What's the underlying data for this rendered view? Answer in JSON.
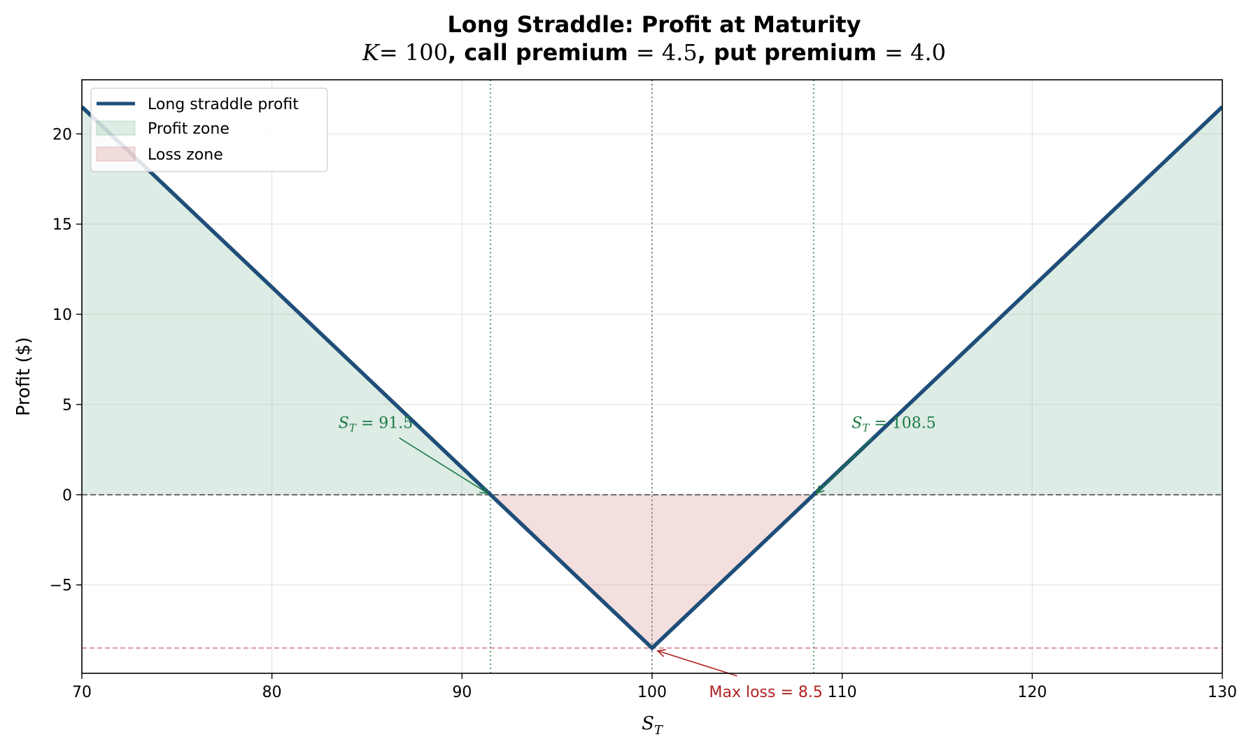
{
  "chart_data": {
    "type": "line",
    "title": "Long Straddle: Profit at Maturity",
    "subtitle": {
      "k_symbol": "K",
      "k_value": "= 100",
      "call_label": ", call premium ",
      "call_value": "= 4.5",
      "put_label": ", put premium ",
      "put_value": "= 4.0"
    },
    "xlabel": {
      "symbol": "S",
      "subscript": "T"
    },
    "ylabel": "Profit ($)",
    "xlim": [
      70,
      130
    ],
    "ylim": [
      -9.9,
      23.0
    ],
    "x_ticks": [
      70,
      80,
      90,
      100,
      110,
      120,
      130
    ],
    "y_ticks": [
      -5,
      0,
      5,
      10,
      15,
      20
    ],
    "y_tick_labels": [
      "−5",
      "0",
      "5",
      "10",
      "15",
      "20"
    ],
    "grid": true,
    "strike": 100,
    "call_premium": 4.5,
    "put_premium": 4.0,
    "series": [
      {
        "name": "Long straddle profit",
        "x": [
          70,
          100,
          130
        ],
        "y": [
          21.5,
          -8.5,
          21.5
        ],
        "color": "#1f4e79"
      }
    ],
    "breakevens": [
      91.5,
      108.5
    ],
    "max_loss": 8.5,
    "zones": {
      "profit_color": "#2e8b57",
      "loss_color": "#c0504d"
    },
    "legend": {
      "position": "top-left",
      "entries": [
        "Long straddle profit",
        "Profit zone",
        "Loss zone"
      ]
    },
    "annotations": [
      {
        "prefix_symbol": "S",
        "prefix_sub": "T",
        "text": " = 91.5",
        "x": 91.5,
        "y": 0,
        "text_x": 83.5,
        "text_y": 4.0,
        "color": "#1a7a45"
      },
      {
        "prefix_symbol": "S",
        "prefix_sub": "T",
        "text": " = 108.5",
        "x": 108.5,
        "y": 0,
        "text_x": 110.5,
        "text_y": 4.0,
        "color": "#1a7a45"
      },
      {
        "text": "Max loss = 8.5",
        "x": 100,
        "y": -8.5,
        "text_x": 103,
        "text_y": -10.9,
        "color": "#b22222"
      }
    ]
  }
}
